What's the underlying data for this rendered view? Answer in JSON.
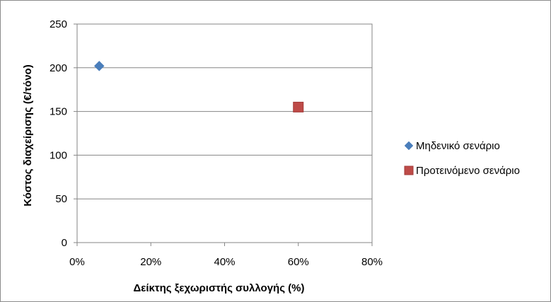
{
  "chart_data": {
    "type": "scatter",
    "title": "",
    "xlabel": "Δείκτης ξεχωριστής συλλογής (%)",
    "ylabel": "Κόστος διαχείρισης (€/τόνο)",
    "xlim": [
      0,
      80
    ],
    "ylim": [
      0,
      250
    ],
    "x_ticks": [
      "0%",
      "20%",
      "40%",
      "60%",
      "80%"
    ],
    "y_ticks": [
      "0",
      "50",
      "100",
      "150",
      "200",
      "250"
    ],
    "grid": "horizontal",
    "legend_position": "right",
    "series": [
      {
        "name": "Μηδενικό σενάριο",
        "marker": "diamond",
        "color": "#4a7ebb",
        "points": [
          {
            "x": 6,
            "y": 202
          }
        ]
      },
      {
        "name": "Προτεινόμενο σενάριο",
        "marker": "square",
        "color": "#be4b48",
        "points": [
          {
            "x": 60,
            "y": 155
          }
        ]
      }
    ]
  }
}
